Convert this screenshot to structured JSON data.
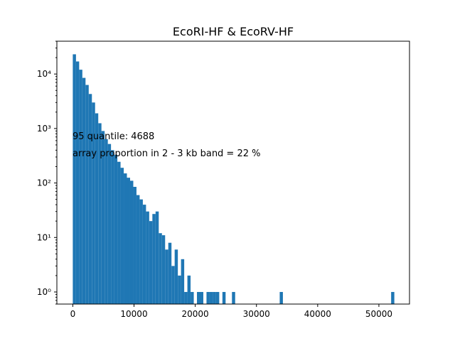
{
  "chart_data": {
    "type": "bar",
    "title": "EcoRI-HF & EcoRV-HF",
    "xlabel": "",
    "ylabel": "",
    "x_scale": "linear",
    "y_scale": "log",
    "xlim": [
      -2600,
      55000
    ],
    "ylim": [
      0.6,
      40000
    ],
    "grid": false,
    "bar_color": "#1f77b4",
    "bin_width": 520,
    "x_ticks": [
      0,
      10000,
      20000,
      30000,
      40000,
      50000
    ],
    "x_tick_labels": [
      "0",
      "10000",
      "20000",
      "30000",
      "40000",
      "50000"
    ],
    "y_ticks": [
      1,
      10,
      100,
      1000,
      10000
    ],
    "y_tick_labels": [
      "10⁰",
      "10¹",
      "10²",
      "10³",
      "10⁴"
    ],
    "bins": [
      [
        0,
        23000
      ],
      [
        520,
        17000
      ],
      [
        1040,
        12000
      ],
      [
        1560,
        8500
      ],
      [
        2080,
        6300
      ],
      [
        2600,
        4300
      ],
      [
        3120,
        3000
      ],
      [
        3640,
        1900
      ],
      [
        4160,
        1250
      ],
      [
        4680,
        900
      ],
      [
        5200,
        640
      ],
      [
        5720,
        520
      ],
      [
        6240,
        400
      ],
      [
        6760,
        330
      ],
      [
        7280,
        245
      ],
      [
        7800,
        190
      ],
      [
        8320,
        150
      ],
      [
        8840,
        125
      ],
      [
        9360,
        110
      ],
      [
        9880,
        85
      ],
      [
        10400,
        60
      ],
      [
        10920,
        50
      ],
      [
        11440,
        40
      ],
      [
        11960,
        30
      ],
      [
        12480,
        20
      ],
      [
        13000,
        27
      ],
      [
        13520,
        30
      ],
      [
        14040,
        12
      ],
      [
        14560,
        11
      ],
      [
        15080,
        6
      ],
      [
        15600,
        8
      ],
      [
        16120,
        3
      ],
      [
        16640,
        6
      ],
      [
        17160,
        2
      ],
      [
        17680,
        4
      ],
      [
        18200,
        1
      ],
      [
        18720,
        2
      ],
      [
        19240,
        1
      ],
      [
        20280,
        1
      ],
      [
        20800,
        1
      ],
      [
        21840,
        1
      ],
      [
        22360,
        1
      ],
      [
        22880,
        1
      ],
      [
        23400,
        1
      ],
      [
        24440,
        1
      ],
      [
        26000,
        1
      ],
      [
        33800,
        1
      ],
      [
        52000,
        1
      ]
    ],
    "annotations": [
      "95 quantile: 4688",
      "array proportion in 2 - 3 kb band = 22 %"
    ]
  }
}
